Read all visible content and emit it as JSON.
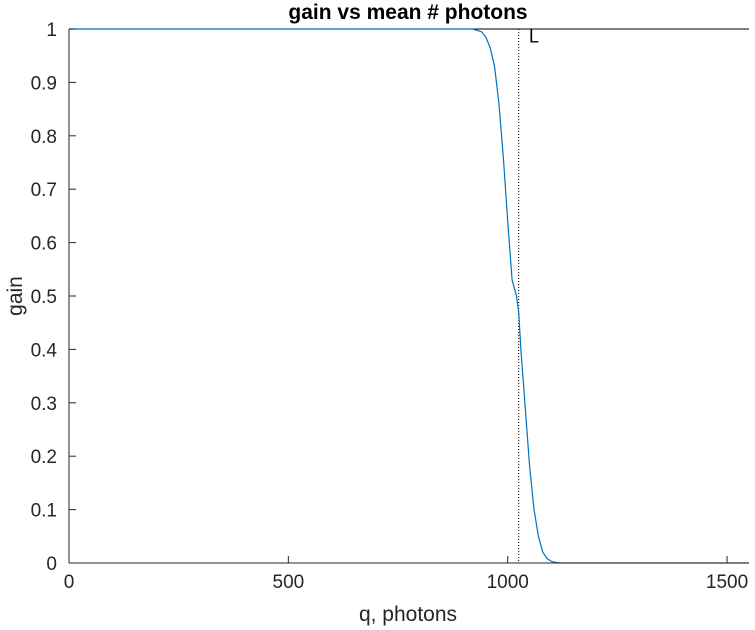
{
  "chart_data": {
    "type": "line",
    "title": "gain vs mean # photons",
    "xlabel": "q, photons",
    "ylabel": "gain",
    "xlim": [
      0,
      1550
    ],
    "ylim": [
      0,
      1
    ],
    "xticks": [
      0,
      500,
      1000,
      1500
    ],
    "xtick_labels": [
      "0",
      "500",
      "1000",
      "1500"
    ],
    "yticks": [
      0,
      0.1,
      0.2,
      0.3,
      0.4,
      0.5,
      0.6,
      0.7,
      0.8,
      0.9,
      1
    ],
    "ytick_labels": [
      "0",
      "0.1",
      "0.2",
      "0.3",
      "0.4",
      "0.5",
      "0.6",
      "0.7",
      "0.8",
      "0.9",
      "1"
    ],
    "grid": false,
    "series": [
      {
        "color": "#0072BD",
        "x": [
          0,
          100,
          200,
          300,
          400,
          500,
          600,
          700,
          800,
          900,
          920,
          940,
          950,
          960,
          970,
          980,
          990,
          1000,
          1010,
          1020,
          1025,
          1030,
          1040,
          1050,
          1060,
          1070,
          1080,
          1090,
          1100,
          1110,
          1120,
          1200,
          1300,
          1400,
          1500,
          1550
        ],
        "y": [
          1,
          1,
          1,
          1,
          1,
          1,
          1,
          1,
          1,
          1,
          1,
          0.995,
          0.985,
          0.965,
          0.93,
          0.86,
          0.76,
          0.64,
          0.53,
          0.5,
          0.47,
          0.4,
          0.29,
          0.18,
          0.1,
          0.05,
          0.02,
          0.008,
          0.003,
          0.001,
          0,
          0,
          0,
          0,
          0,
          0
        ]
      }
    ],
    "reference_lines": [
      {
        "orientation": "vertical",
        "x": 1025,
        "style": "dotted",
        "color": "#000000"
      },
      {
        "orientation": "horizontal",
        "y": 1,
        "style": "solid",
        "color": "#000000"
      }
    ],
    "annotation": {
      "text": "L",
      "x": 1060,
      "y": 0.975
    }
  }
}
